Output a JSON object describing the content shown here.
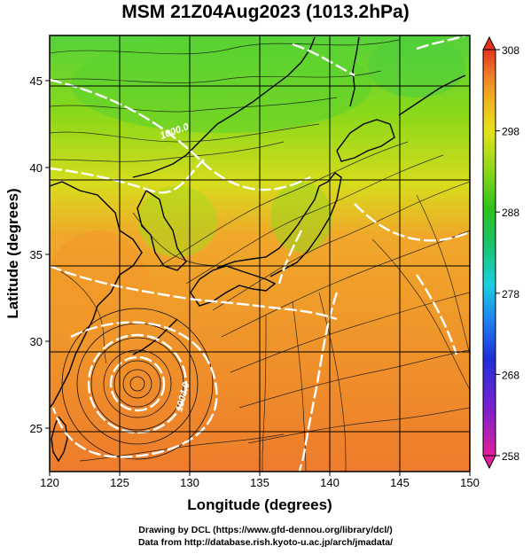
{
  "title": "MSM 21Z04Aug2023 (1013.2hPa)",
  "x_axis": {
    "label": "Longitude (degrees)",
    "range": [
      120,
      150
    ],
    "ticks": [
      "120",
      "125",
      "130",
      "135",
      "140",
      "145",
      "150"
    ],
    "tick_values": [
      120,
      125,
      130,
      135,
      140,
      145,
      150
    ]
  },
  "y_axis": {
    "label": "Latitude  (degrees)",
    "range": [
      22.5,
      47.6
    ],
    "ticks": [
      "25",
      "30",
      "35",
      "40",
      "45"
    ],
    "tick_values": [
      25,
      30,
      35,
      40,
      45
    ]
  },
  "colorbar": {
    "min": 258,
    "max": 308,
    "ticks": [
      "308",
      "298",
      "288",
      "278",
      "268",
      "258"
    ],
    "tick_values": [
      308,
      298,
      288,
      278,
      268,
      258
    ],
    "colors": [
      "#e0209a",
      "#7a1fd0",
      "#1c2fd8",
      "#1f7ef2",
      "#1ad0e0",
      "#18c46a",
      "#2ec21b",
      "#8ad81a",
      "#e6e21a",
      "#f0b01f",
      "#ee7a2a",
      "#e5331e"
    ]
  },
  "contours": [
    {
      "label": "1000.0"
    },
    {
      "label": "1004.0"
    }
  ],
  "typhoon_center": {
    "lon": 126.5,
    "lat": 27.6
  },
  "credits": {
    "line1": "Drawing by DCL (https://www.gfd-dennou.org/library/dcl/)",
    "line2": "Data from http://database.rish.kyoto-u.ac.jp/arch/jmadata/"
  }
}
